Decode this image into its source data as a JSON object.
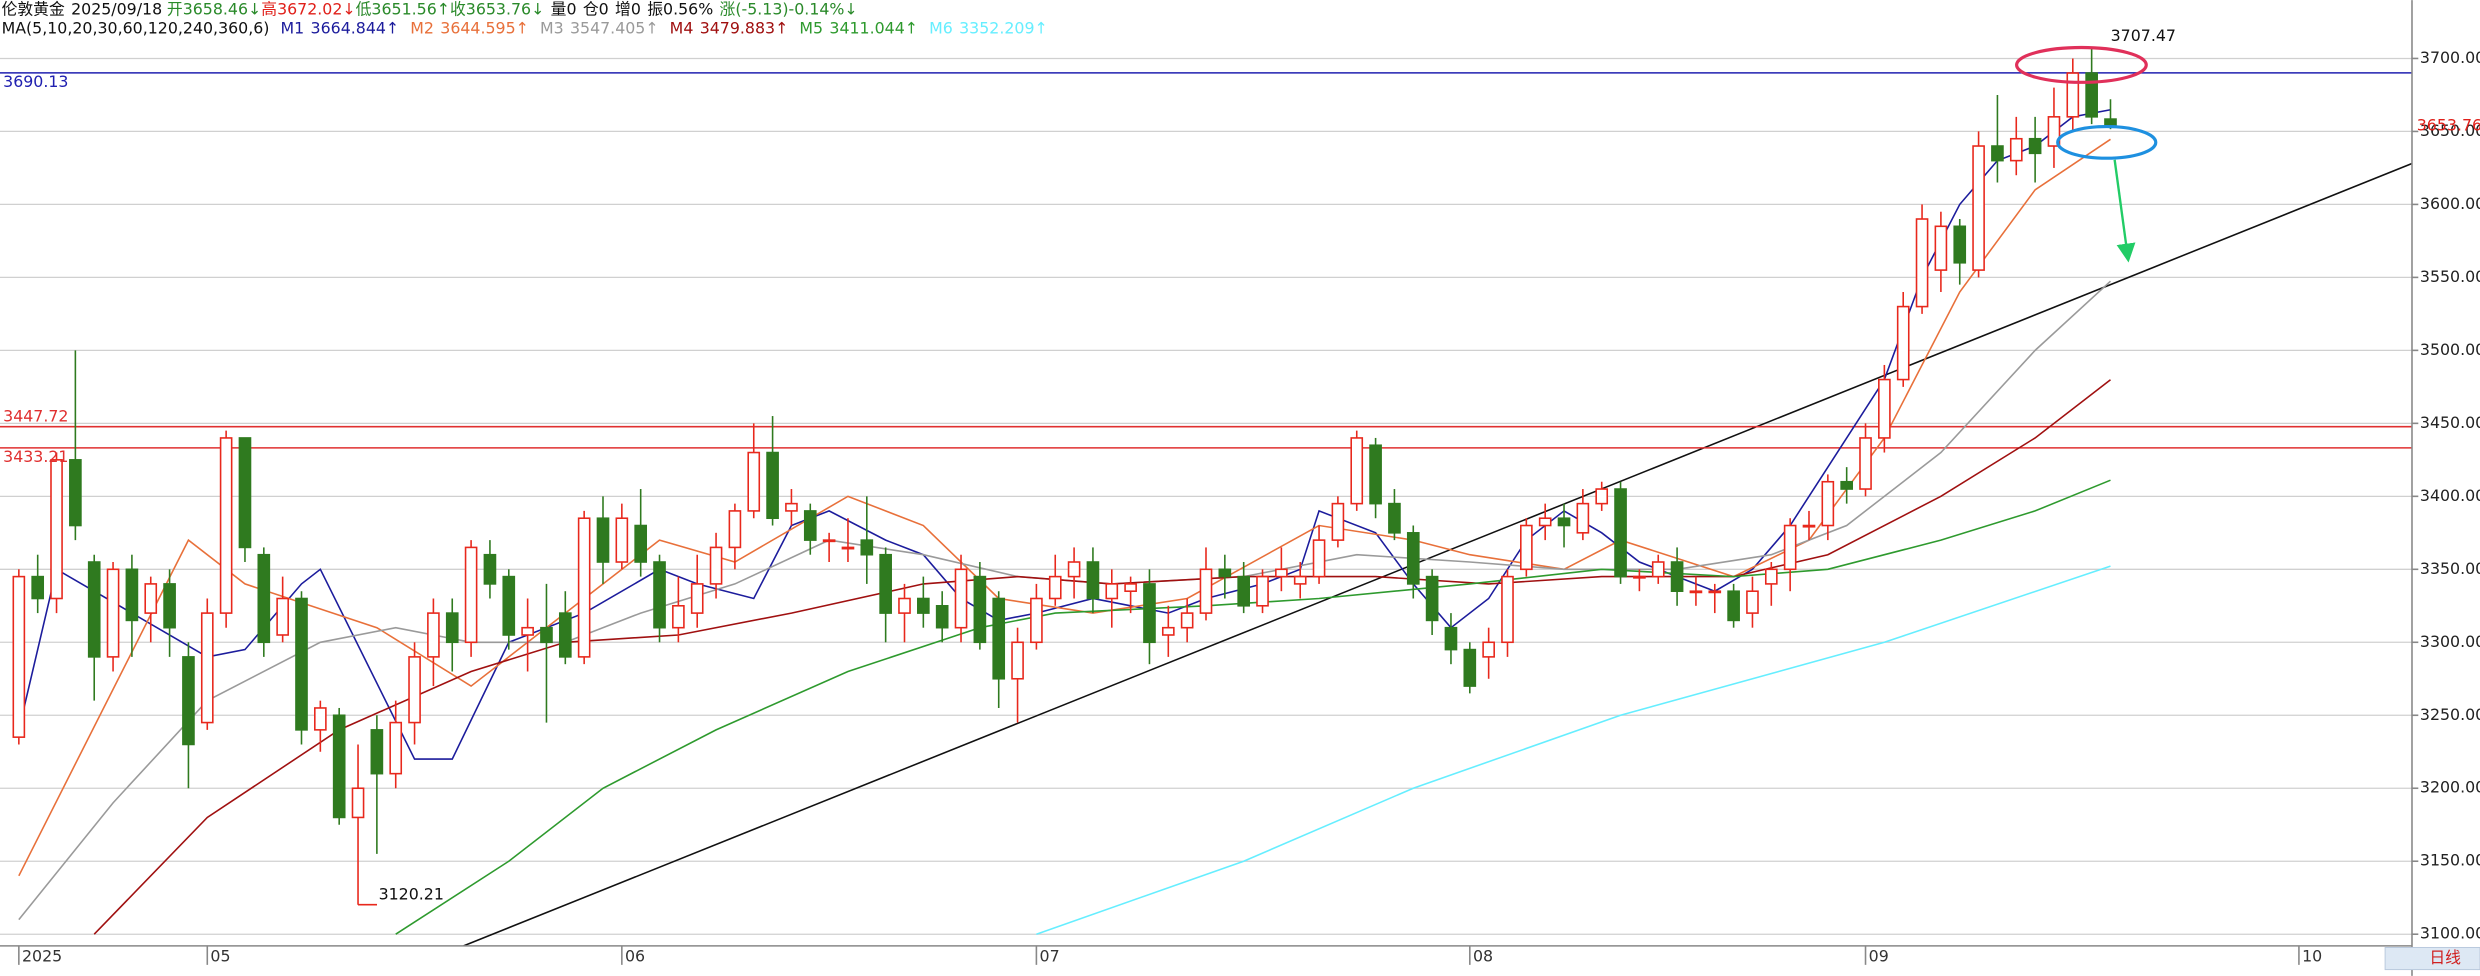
{
  "chart_data": {
    "type": "candlestick",
    "title": "伦敦黄金",
    "date": "2025/09/18",
    "header_items": [
      {
        "label": "开3658.46↓",
        "color": "#2a8a2a"
      },
      {
        "label": "高3672.02↓",
        "color": "#e0201a"
      },
      {
        "label": "低3651.56↑",
        "color": "#2a8a2a"
      },
      {
        "label": "收3653.76↓",
        "color": "#2a8a2a"
      },
      {
        "label": "量0",
        "color": "#111111"
      },
      {
        "label": "仓0",
        "color": "#111111"
      },
      {
        "label": "增0",
        "color": "#111111"
      },
      {
        "label": "振0.56%",
        "color": "#111111"
      },
      {
        "label": "涨(-5.13)-0.14%↓",
        "color": "#2a8a2a"
      }
    ],
    "ma_title": "MA(5,10,20,30,60,120,240,360,6)",
    "period": "日线",
    "up_color": "#e8281c",
    "down_color": "#2f7a1f",
    "open": [
      3235,
      3345,
      3330,
      3425,
      3355,
      3290,
      3350,
      3320,
      3340,
      3290,
      3245,
      3320,
      3440,
      3360,
      3305,
      3330,
      3240,
      3250,
      3180,
      3240,
      3210,
      3245,
      3290,
      3320,
      3300,
      3360,
      3345,
      3305,
      3310,
      3320,
      3290,
      3385,
      3355,
      3380,
      3355,
      3310,
      3320,
      3340,
      3365,
      3390,
      3430,
      3390,
      3390,
      3370,
      3365,
      3370,
      3360,
      3320,
      3330,
      3325,
      3310,
      3345,
      3330,
      3275,
      3300,
      3330,
      3345,
      3355,
      3330,
      3335,
      3340,
      3305,
      3310,
      3320,
      3350,
      3345,
      3325,
      3345,
      3340,
      3345,
      3370,
      3395,
      3435,
      3395,
      3375,
      3345,
      3310,
      3295,
      3290,
      3300,
      3350,
      3380,
      3385,
      3375,
      3395,
      3405,
      3345,
      3345,
      3355,
      3335,
      3335,
      3335,
      3320,
      3340,
      3350,
      3380,
      3380,
      3410,
      3405,
      3440,
      3480,
      3530,
      3555,
      3585,
      3555,
      3640,
      3630,
      3645,
      3640,
      3660,
      3690,
      3658.46
    ],
    "high": [
      3350,
      3360,
      3430,
      3500,
      3360,
      3355,
      3360,
      3345,
      3350,
      3300,
      3330,
      3445,
      3440,
      3365,
      3345,
      3335,
      3260,
      3255,
      3230,
      3250,
      3260,
      3300,
      3330,
      3330,
      3370,
      3370,
      3350,
      3330,
      3340,
      3335,
      3390,
      3400,
      3395,
      3405,
      3360,
      3345,
      3360,
      3375,
      3395,
      3450,
      3455,
      3405,
      3395,
      3375,
      3385,
      3400,
      3365,
      3340,
      3345,
      3335,
      3360,
      3355,
      3335,
      3310,
      3340,
      3360,
      3365,
      3365,
      3350,
      3345,
      3350,
      3325,
      3330,
      3365,
      3360,
      3355,
      3350,
      3365,
      3355,
      3380,
      3400,
      3445,
      3440,
      3405,
      3380,
      3350,
      3320,
      3300,
      3310,
      3350,
      3385,
      3395,
      3395,
      3405,
      3410,
      3410,
      3350,
      3360,
      3365,
      3345,
      3340,
      3340,
      3345,
      3355,
      3385,
      3390,
      3415,
      3420,
      3450,
      3490,
      3540,
      3600,
      3595,
      3590,
      3650,
      3675,
      3660,
      3660,
      3680,
      3700,
      3707.47,
      3672.02
    ],
    "low": [
      3230,
      3320,
      3320,
      3370,
      3260,
      3280,
      3290,
      3300,
      3290,
      3200,
      3240,
      3310,
      3355,
      3290,
      3300,
      3230,
      3225,
      3175,
      3120.21,
      3155,
      3200,
      3230,
      3270,
      3280,
      3290,
      3330,
      3295,
      3280,
      3245,
      3285,
      3285,
      3340,
      3350,
      3345,
      3300,
      3300,
      3310,
      3330,
      3350,
      3385,
      3380,
      3380,
      3360,
      3355,
      3355,
      3340,
      3300,
      3300,
      3310,
      3300,
      3300,
      3295,
      3255,
      3245,
      3295,
      3325,
      3330,
      3320,
      3310,
      3320,
      3285,
      3290,
      3300,
      3315,
      3330,
      3320,
      3320,
      3335,
      3330,
      3340,
      3365,
      3390,
      3385,
      3370,
      3330,
      3305,
      3285,
      3265,
      3275,
      3290,
      3345,
      3370,
      3365,
      3370,
      3390,
      3340,
      3335,
      3340,
      3325,
      3325,
      3320,
      3310,
      3310,
      3325,
      3335,
      3370,
      3370,
      3395,
      3400,
      3430,
      3475,
      3525,
      3540,
      3545,
      3550,
      3615,
      3620,
      3615,
      3625,
      3650,
      3655,
      3651.56
    ],
    "close": [
      3345,
      3330,
      3425,
      3380,
      3290,
      3350,
      3315,
      3340,
      3310,
      3230,
      3320,
      3440,
      3365,
      3300,
      3330,
      3240,
      3255,
      3180,
      3200,
      3210,
      3245,
      3290,
      3320,
      3300,
      3365,
      3340,
      3305,
      3310,
      3300,
      3290,
      3385,
      3355,
      3385,
      3355,
      3310,
      3325,
      3340,
      3365,
      3390,
      3430,
      3385,
      3395,
      3370,
      3370,
      3365,
      3360,
      3320,
      3330,
      3320,
      3310,
      3350,
      3300,
      3275,
      3300,
      3330,
      3345,
      3355,
      3330,
      3340,
      3340,
      3300,
      3310,
      3320,
      3350,
      3345,
      3325,
      3345,
      3350,
      3345,
      3370,
      3395,
      3440,
      3395,
      3375,
      3340,
      3315,
      3295,
      3270,
      3300,
      3345,
      3380,
      3385,
      3380,
      3395,
      3405,
      3345,
      3345,
      3355,
      3335,
      3335,
      3335,
      3315,
      3335,
      3350,
      3380,
      3380,
      3410,
      3405,
      3440,
      3480,
      3530,
      3590,
      3585,
      3560,
      3640,
      3630,
      3645,
      3635,
      3660,
      3690,
      3660,
      3653.76
    ],
    "series": [
      {
        "name": "M1",
        "label": "3664.844↑",
        "color": "#1c1c9c",
        "x": [
          0,
          2,
          10,
          12,
          15,
          16,
          21,
          23,
          26,
          30,
          34,
          36,
          39,
          41,
          43,
          46,
          48,
          50,
          52,
          54,
          57,
          59,
          61,
          63,
          66,
          68,
          69,
          72,
          74,
          76,
          78,
          80,
          82,
          84,
          86,
          88,
          90,
          92,
          94,
          96,
          99,
          101,
          103,
          105,
          107,
          109,
          111
        ],
        "values": [
          3240,
          3350,
          3290,
          3295,
          3340,
          3350,
          3220,
          3220,
          3300,
          3320,
          3350,
          3340,
          3330,
          3380,
          3390,
          3370,
          3360,
          3330,
          3315,
          3320,
          3330,
          3325,
          3320,
          3330,
          3340,
          3350,
          3390,
          3375,
          3340,
          3310,
          3330,
          3370,
          3390,
          3375,
          3355,
          3345,
          3335,
          3350,
          3380,
          3420,
          3480,
          3550,
          3600,
          3630,
          3640,
          3660,
          3664.844
        ]
      },
      {
        "name": "M2",
        "label": "3644.595↑",
        "color": "#e8703a",
        "x": [
          0,
          9,
          12,
          19,
          24,
          29,
          34,
          38,
          44,
          48,
          52,
          57,
          62,
          69,
          74,
          77,
          82,
          85,
          91,
          95,
          99,
          103,
          107,
          111
        ],
        "values": [
          3140,
          3370,
          3340,
          3310,
          3270,
          3320,
          3370,
          3355,
          3400,
          3380,
          3330,
          3320,
          3330,
          3380,
          3370,
          3360,
          3350,
          3370,
          3345,
          3370,
          3440,
          3540,
          3610,
          3644.595
        ]
      },
      {
        "name": "M3",
        "label": "3547.405↑",
        "color": "#9a9a9a",
        "x": [
          0,
          5,
          10,
          16,
          20,
          24,
          29,
          33,
          38,
          43,
          48,
          53,
          58,
          65,
          71,
          77,
          82,
          88,
          93,
          97,
          102,
          107,
          111
        ],
        "values": [
          3110,
          3190,
          3260,
          3300,
          3310,
          3300,
          3300,
          3320,
          3340,
          3370,
          3360,
          3345,
          3340,
          3345,
          3360,
          3355,
          3350,
          3350,
          3360,
          3380,
          3430,
          3500,
          3547.405
        ]
      },
      {
        "name": "M4",
        "label": "3479.883↑",
        "color": "#a01010",
        "x": [
          4,
          10,
          17,
          24,
          29,
          35,
          41,
          48,
          53,
          58,
          65,
          72,
          78,
          84,
          91,
          96,
          102,
          107,
          111
        ],
        "values": [
          3100,
          3180,
          3240,
          3280,
          3300,
          3305,
          3320,
          3340,
          3345,
          3340,
          3345,
          3345,
          3340,
          3345,
          3345,
          3360,
          3400,
          3440,
          3479.883
        ]
      },
      {
        "name": "M5",
        "label": "3411.044↑",
        "color": "#2e9a2e",
        "x": [
          20,
          26,
          31,
          37,
          44,
          51,
          55,
          63,
          69,
          77,
          84,
          91,
          96,
          102,
          107,
          111
        ],
        "values": [
          3100,
          3150,
          3200,
          3240,
          3280,
          3310,
          3320,
          3325,
          3330,
          3340,
          3350,
          3345,
          3350,
          3370,
          3390,
          3411.044
        ]
      },
      {
        "name": "M6",
        "label": "3352.209↑",
        "color": "#66eeff",
        "x": [
          54,
          65,
          74,
          85,
          99,
          111
        ],
        "values": [
          3100,
          3150,
          3200,
          3250,
          3300,
          3352.209
        ]
      }
    ],
    "levels": [
      {
        "value": 3690.13,
        "color": "#2020b0"
      },
      {
        "value": 3447.72,
        "color": "#e03030"
      },
      {
        "value": 3433.21,
        "color": "#e03030"
      }
    ],
    "last_price": {
      "value": 3653.76,
      "color": "#e0201a"
    },
    "trendline": {
      "x": [
        23.6,
        127
      ],
      "y": [
        3092,
        3628
      ],
      "color": "#111111"
    },
    "xlim": [
      -1,
      127
    ],
    "ylim": [
      3092,
      3740
    ],
    "xticks": [
      {
        "value": 0,
        "label": "2025"
      },
      {
        "value": 10,
        "label": "05"
      },
      {
        "value": 32,
        "label": "06"
      },
      {
        "value": 54,
        "label": "07"
      },
      {
        "value": 77,
        "label": "08"
      },
      {
        "value": 98,
        "label": "09"
      },
      {
        "value": 121,
        "label": "10"
      }
    ],
    "yticks": [
      {
        "value": 3100,
        "label": "3100.00"
      },
      {
        "value": 3150,
        "label": "3150.00"
      },
      {
        "value": 3200,
        "label": "3200.00"
      },
      {
        "value": 3250,
        "label": "3250.00"
      },
      {
        "value": 3300,
        "label": "3300.00"
      },
      {
        "value": 3350,
        "label": "3350.00"
      },
      {
        "value": 3400,
        "label": "3400.00"
      },
      {
        "value": 3450,
        "label": "3450.00"
      },
      {
        "value": 3500,
        "label": "3500.00"
      },
      {
        "value": 3550,
        "label": "3550.00"
      },
      {
        "value": 3600,
        "label": "3600.00"
      },
      {
        "value": 3650,
        "label": "3650.00"
      },
      {
        "value": 3700,
        "label": "3700.00"
      }
    ],
    "grid": true
  }
}
